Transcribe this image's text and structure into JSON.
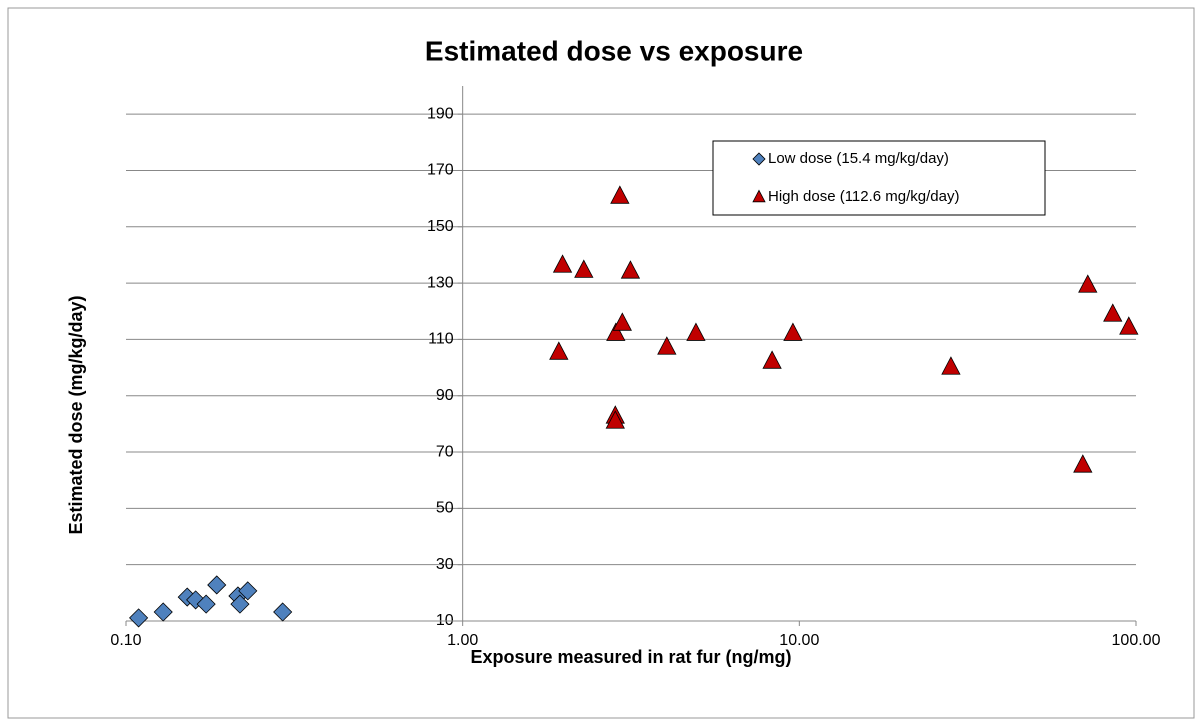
{
  "chart_data": {
    "type": "scatter",
    "title": "Estimated dose vs exposure",
    "x_label": "Exposure measured in rat fur (ng/mg)",
    "y_label": "Estimated dose (mg/kg/day)",
    "x_log": true,
    "y_axis_crosses": 1,
    "grid": true,
    "legend": "upper right",
    "xlim": [
      0.1,
      100
    ],
    "xticks": [
      {
        "value": 0.1,
        "label": "0.10"
      },
      {
        "value": 1,
        "label": "1.00"
      },
      {
        "value": 10,
        "label": "10.00"
      },
      {
        "value": 100,
        "label": "100.00"
      }
    ],
    "ylim": [
      10,
      200
    ],
    "yticks": [
      10,
      30,
      50,
      70,
      90,
      110,
      130,
      150,
      170,
      190
    ],
    "series": [
      {
        "name": "Low dose (15.4  mg/kg/day)",
        "color": "#4f81bd",
        "marker": "diamond",
        "x": [
          0.109,
          0.129,
          0.152,
          0.161,
          0.173,
          0.186,
          0.215,
          0.218,
          0.23,
          0.292
        ],
        "values": [
          11.1,
          13.2,
          18.5,
          17.5,
          16.0,
          22.8,
          18.9,
          16.0,
          20.7,
          13.2
        ]
      },
      {
        "name": "High dose (112.6  mg/kg/day)",
        "color": "#c00000",
        "marker": "triangle",
        "x": [
          1.93,
          1.98,
          2.29,
          2.93,
          2.85,
          2.98,
          2.84,
          2.84,
          3.15,
          4.04,
          4.93,
          8.3,
          9.57,
          28.2,
          69.5,
          71.9,
          85.3,
          95.2
        ],
        "values": [
          105.5,
          136.4,
          134.6,
          160.9,
          112.2,
          115.8,
          82.8,
          81.0,
          134.3,
          107.3,
          112.2,
          102.3,
          112.2,
          100.2,
          65.4,
          129.3,
          119.0,
          114.4
        ]
      }
    ]
  }
}
